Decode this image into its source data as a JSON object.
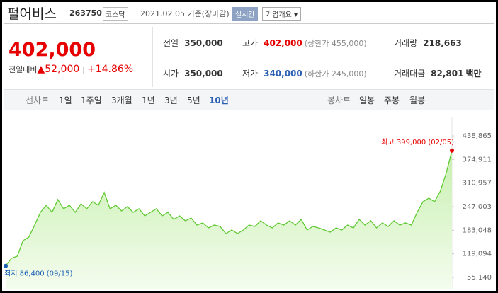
{
  "header": {
    "title": "펄어비스",
    "code": "263750",
    "market": "코스닥",
    "date": "2021.02.05 기준(장마감)",
    "realtime": "실시간",
    "company_button": "기업개요"
  },
  "quote": {
    "price": "402,000",
    "change_label": "전일대비",
    "change": "52,000",
    "change_pct": "+14.86%",
    "stats": [
      {
        "label": "전일",
        "value": "350,000"
      },
      {
        "label": "고가",
        "value": "402,000",
        "note": "(상한가 455,000)"
      },
      {
        "label": "거래량",
        "value": "218,663"
      },
      {
        "label": "시가",
        "value": "350,000"
      },
      {
        "label": "저가",
        "value": "340,000",
        "note": "(하한가 245,000)"
      },
      {
        "label": "거래대금",
        "value": "82,801",
        "note": "백만"
      }
    ]
  },
  "tabs": {
    "line_label": "선차트",
    "line_tabs": [
      "1일",
      "1주일",
      "3개월",
      "1년",
      "3년",
      "5년",
      "10년"
    ],
    "candle_label": "봉차트",
    "candle_tabs": [
      "일봉",
      "주봉",
      "월봉"
    ]
  },
  "chart_data": {
    "type": "line",
    "color": "#5fc932",
    "values": [
      86400,
      106900,
      112700,
      154900,
      164500,
      197100,
      231700,
      250800,
      231700,
      266200,
      241200,
      250800,
      231700,
      254700,
      241200,
      260400,
      250800,
      285400,
      241200,
      250800,
      235500,
      247000,
      231700,
      241200,
      222100,
      231700,
      241200,
      222100,
      231700,
      212500,
      222100,
      208600,
      216300,
      197100,
      202900,
      189400,
      197100,
      193300,
      174100,
      183700,
      174100,
      183700,
      197100,
      193300,
      208600,
      197100,
      189400,
      202900,
      197100,
      208600,
      197100,
      212500,
      183700,
      193300,
      189400,
      183700,
      177900,
      189400,
      183700,
      197100,
      189400,
      212500,
      197100,
      208600,
      189400,
      202900,
      193300,
      208600,
      197100,
      202900,
      197100,
      231700,
      260400,
      270000,
      260400,
      289200,
      337200,
      399000
    ],
    "ylim": [
      39791,
      456133
    ],
    "yticks": [
      {
        "value": 55140,
        "label": "55,140"
      },
      {
        "value": 119094,
        "label": "119,094"
      },
      {
        "value": 183048,
        "label": "183,048"
      },
      {
        "value": 247003,
        "label": "247,003"
      },
      {
        "value": 310957,
        "label": "310,957"
      },
      {
        "value": 374911,
        "label": "374,911"
      },
      {
        "value": 438865,
        "label": "438,865"
      }
    ],
    "grid": false,
    "annotations": [
      {
        "label": "최고 399,000 (02/05)",
        "value": 399000,
        "color": "#e60000"
      },
      {
        "label": "최저 86,400 (09/15)",
        "value": 86400,
        "color": "#1a5fb4"
      }
    ]
  }
}
